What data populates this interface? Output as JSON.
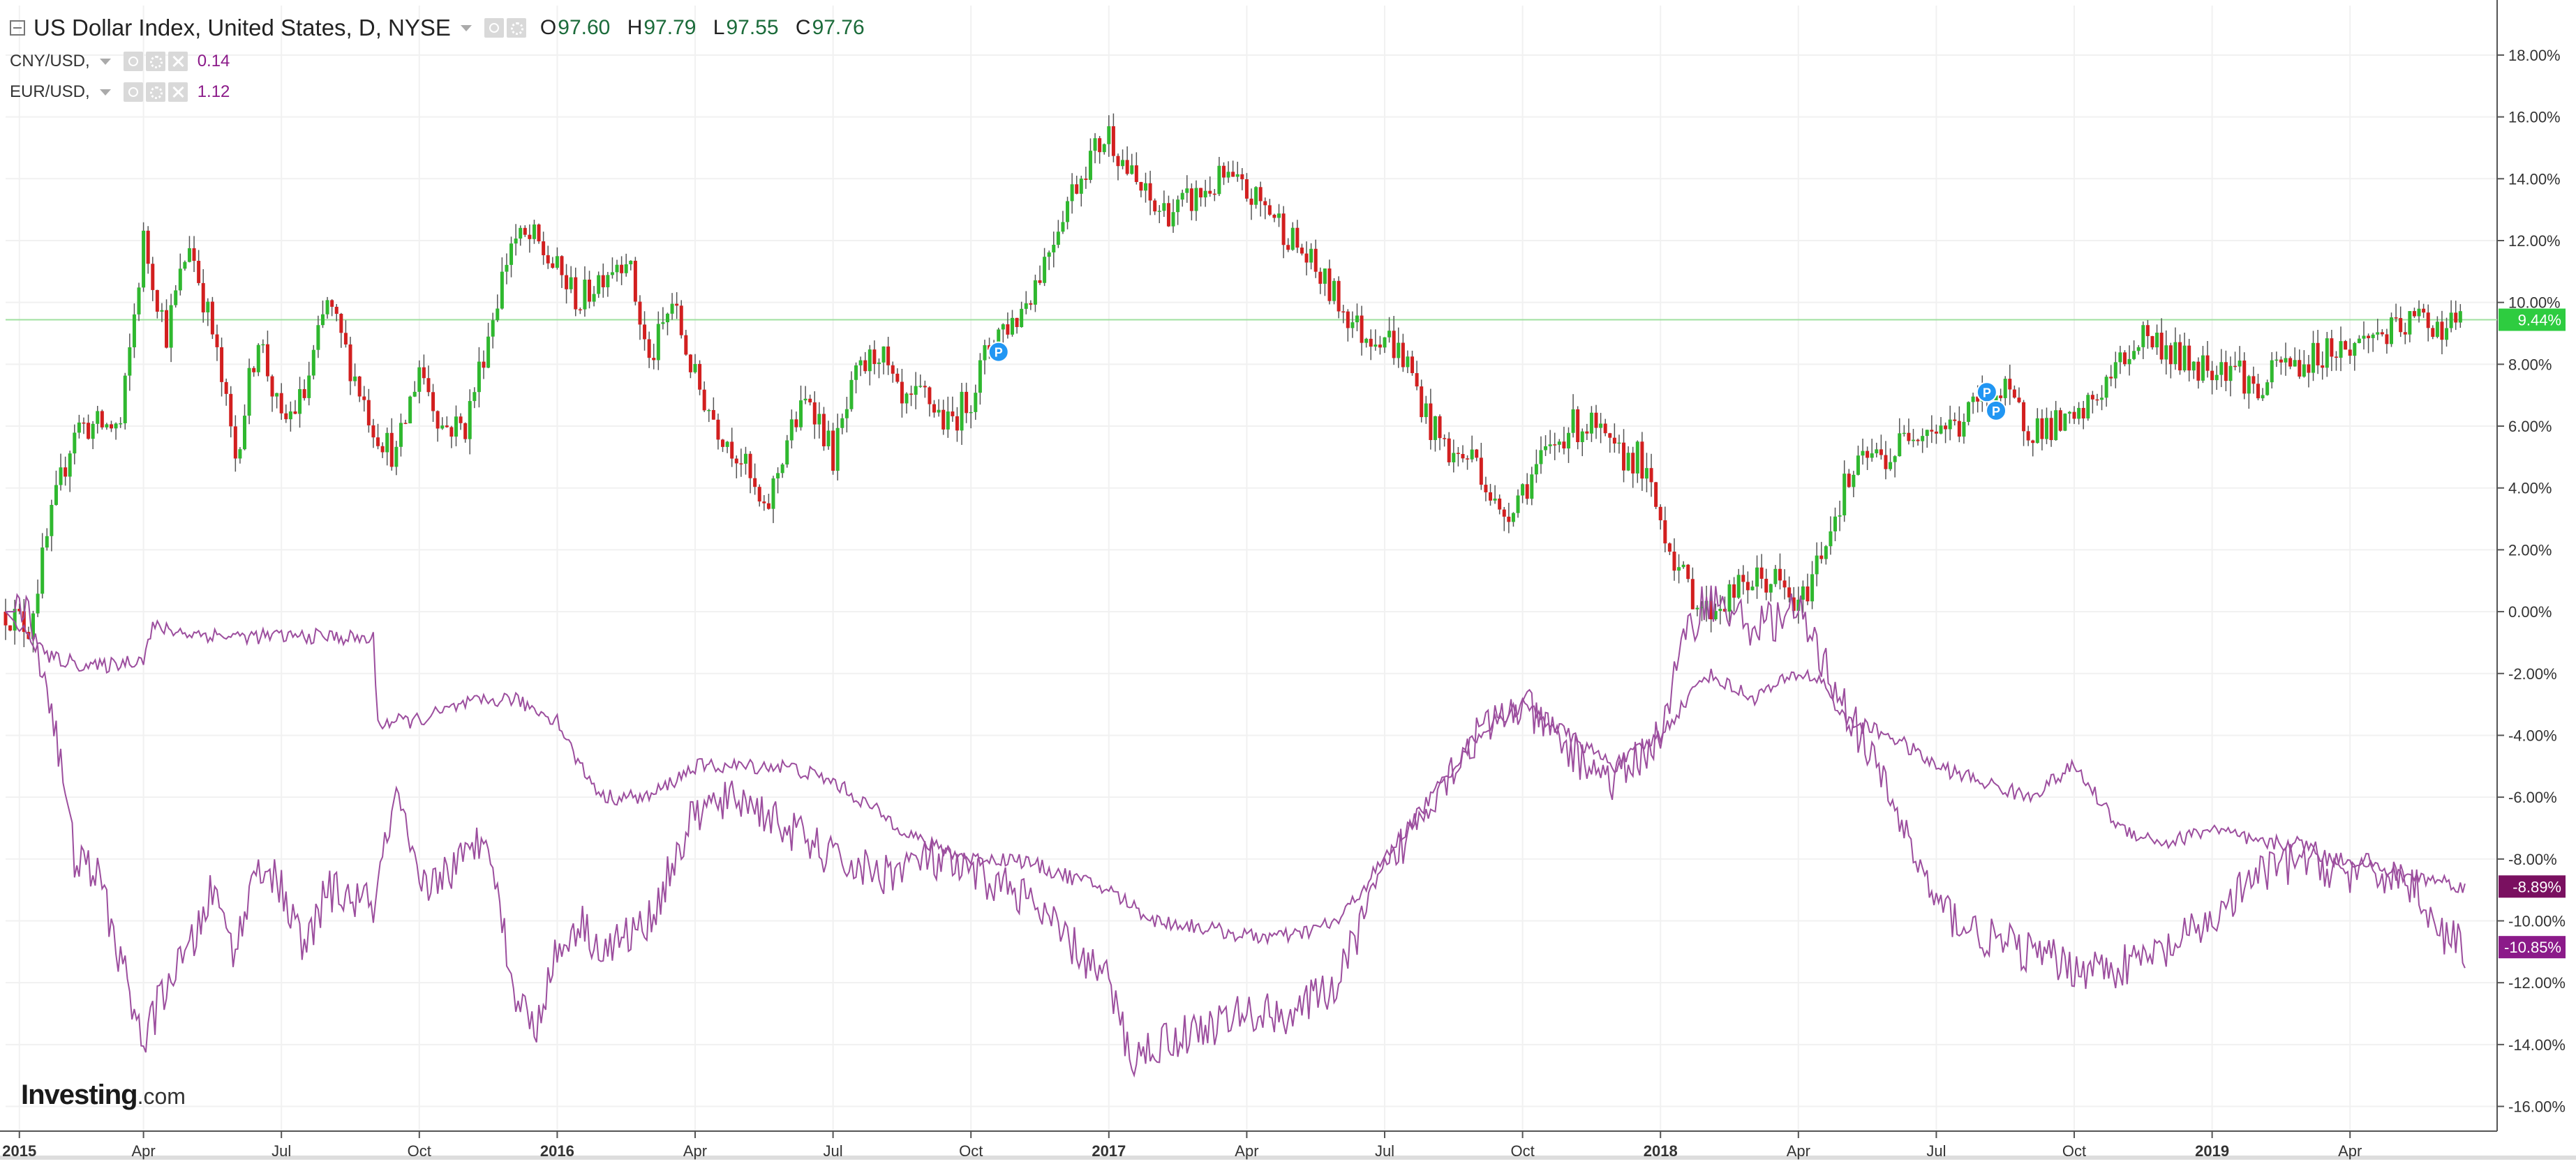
{
  "legend": {
    "main": {
      "title": "US Dollar Index, United States, D, NYSE",
      "open_label": "O",
      "open": "97.60",
      "high_label": "H",
      "high": "97.79",
      "low_label": "L",
      "low": "97.55",
      "close_label": "C",
      "close": "97.76"
    },
    "series": [
      {
        "name": "CNY/USD,",
        "value": "0.14"
      },
      {
        "name": "EUR/USD,",
        "value": "1.12"
      }
    ]
  },
  "logo": {
    "brand": "Investing",
    "suffix": ".com"
  },
  "colors": {
    "up": "#2fb82f",
    "down": "#d21f1f",
    "wick": "#555555",
    "compare": "#9c4e9e",
    "grid": "#f1f1f1",
    "price_line": "#9fe09f",
    "badge_green": "#2ecc40",
    "badge_purple": "#8b1a89",
    "badge_cny": "#7a1060",
    "p_marker": "#2196f3",
    "axis_text": "#333333"
  },
  "chart_data": {
    "type": "line",
    "title": "US Dollar Index, United States, D, NYSE",
    "y_unit": "% change from start",
    "ylim": [
      -16.8,
      19.6
    ],
    "y_ticks": [
      18,
      16,
      14,
      12,
      10,
      8,
      6,
      4,
      2,
      0,
      -2,
      -4,
      -6,
      -8,
      -10,
      -12,
      -14,
      -16
    ],
    "y_tick_labels": [
      "18.00%",
      "16.00%",
      "14.00%",
      "12.00%",
      "10.00%",
      "8.00%",
      "6.00%",
      "4.00%",
      "2.00%",
      "0.00%",
      "-2.00%",
      "-4.00%",
      "-6.00%",
      "-8.00%",
      "-10.00%",
      "-12.00%",
      "-14.00%",
      "-16.00%"
    ],
    "x_range": [
      0,
      54.2
    ],
    "x_unit": "months since Jan 2015",
    "x_ticks": [
      {
        "t": 0.3,
        "label": "2015",
        "bold": true
      },
      {
        "t": 3,
        "label": "Apr",
        "bold": false
      },
      {
        "t": 6,
        "label": "Jul",
        "bold": false
      },
      {
        "t": 9,
        "label": "Oct",
        "bold": false
      },
      {
        "t": 12,
        "label": "2016",
        "bold": true
      },
      {
        "t": 15,
        "label": "Apr",
        "bold": false
      },
      {
        "t": 18,
        "label": "Jul",
        "bold": false
      },
      {
        "t": 21,
        "label": "Oct",
        "bold": false
      },
      {
        "t": 24,
        "label": "2017",
        "bold": true
      },
      {
        "t": 27,
        "label": "Apr",
        "bold": false
      },
      {
        "t": 30,
        "label": "Jul",
        "bold": false
      },
      {
        "t": 33,
        "label": "Oct",
        "bold": false
      },
      {
        "t": 36,
        "label": "2018",
        "bold": true
      },
      {
        "t": 39,
        "label": "Apr",
        "bold": false
      },
      {
        "t": 42,
        "label": "Jul",
        "bold": false
      },
      {
        "t": 45,
        "label": "Oct",
        "bold": false
      },
      {
        "t": 48,
        "label": "2019",
        "bold": true
      },
      {
        "t": 51,
        "label": "Apr",
        "bold": false
      }
    ],
    "current_price_level": 9.44,
    "series": [
      {
        "name": "US Dollar Index",
        "style": "candlestick",
        "last_label": "9.44%",
        "points": [
          [
            0,
            0
          ],
          [
            0.5,
            -0.5
          ],
          [
            1,
            3
          ],
          [
            1.5,
            6
          ],
          [
            2,
            6
          ],
          [
            2.5,
            6
          ],
          [
            3,
            12
          ],
          [
            3.5,
            9
          ],
          [
            4,
            12
          ],
          [
            4.5,
            9
          ],
          [
            5,
            5
          ],
          [
            5.5,
            9
          ],
          [
            6,
            6
          ],
          [
            6.5,
            7
          ],
          [
            7,
            10
          ],
          [
            7.5,
            8
          ],
          [
            8,
            6
          ],
          [
            8.5,
            5
          ],
          [
            9,
            8
          ],
          [
            9.5,
            6
          ],
          [
            10,
            6
          ],
          [
            10.5,
            9
          ],
          [
            11,
            12
          ],
          [
            11.5,
            12
          ],
          [
            12,
            11
          ],
          [
            12.5,
            10
          ],
          [
            13,
            11
          ],
          [
            13.5,
            11.6
          ],
          [
            14,
            8
          ],
          [
            14.5,
            10
          ],
          [
            15,
            7.5
          ],
          [
            15.5,
            6
          ],
          [
            16,
            5
          ],
          [
            16.5,
            3
          ],
          [
            17,
            5.6
          ],
          [
            17.5,
            7
          ],
          [
            18,
            5
          ],
          [
            18.5,
            7.5
          ],
          [
            19,
            8.5
          ],
          [
            19.5,
            6.5
          ],
          [
            20,
            7
          ],
          [
            20.5,
            6
          ],
          [
            21,
            7
          ],
          [
            21.5,
            9
          ],
          [
            22,
            9.5
          ],
          [
            22.5,
            11
          ],
          [
            23,
            13
          ],
          [
            23.5,
            14.5
          ],
          [
            24,
            15.5
          ],
          [
            24.5,
            14
          ],
          [
            25,
            13
          ],
          [
            25.5,
            13
          ],
          [
            26,
            13.5
          ],
          [
            26.5,
            14
          ],
          [
            27,
            13.5
          ],
          [
            27.5,
            13
          ],
          [
            28,
            12
          ],
          [
            28.5,
            11
          ],
          [
            29,
            10
          ],
          [
            29.5,
            9
          ],
          [
            30,
            9
          ],
          [
            30.5,
            8
          ],
          [
            31,
            6
          ],
          [
            31.5,
            5
          ],
          [
            32,
            5
          ],
          [
            32.5,
            3
          ],
          [
            33,
            4
          ],
          [
            33.5,
            5
          ],
          [
            34,
            6
          ],
          [
            34.5,
            6
          ],
          [
            35,
            5
          ],
          [
            35.5,
            5
          ],
          [
            36,
            3
          ],
          [
            36.5,
            1
          ],
          [
            37,
            0
          ],
          [
            37.5,
            0.5
          ],
          [
            38,
            1
          ],
          [
            38.5,
            1
          ],
          [
            39,
            0
          ],
          [
            39.5,
            2
          ],
          [
            40,
            4
          ],
          [
            40.5,
            5
          ],
          [
            41,
            5
          ],
          [
            41.5,
            6
          ],
          [
            42,
            6
          ],
          [
            42.5,
            6
          ],
          [
            43,
            7
          ],
          [
            43.5,
            7
          ],
          [
            44,
            6
          ],
          [
            44.5,
            6
          ],
          [
            45,
            6
          ],
          [
            45.5,
            7
          ],
          [
            46,
            8
          ],
          [
            46.5,
            9
          ],
          [
            47,
            8.5
          ],
          [
            47.5,
            8
          ],
          [
            48,
            8
          ],
          [
            48.5,
            8
          ],
          [
            49,
            7
          ],
          [
            49.5,
            8
          ],
          [
            50,
            8
          ],
          [
            50.5,
            8.5
          ],
          [
            51,
            8.5
          ],
          [
            51.5,
            9
          ],
          [
            52,
            9
          ],
          [
            52.5,
            9.5
          ],
          [
            53,
            9.2
          ],
          [
            53.5,
            9.44
          ]
        ]
      },
      {
        "name": "CNY/USD",
        "style": "line",
        "last_label": "-8.89%",
        "points": [
          [
            0,
            0
          ],
          [
            0.3,
            -0.5
          ],
          [
            0.6,
            -1
          ],
          [
            1,
            -1.5
          ],
          [
            2,
            -1.8
          ],
          [
            3,
            -1.5
          ],
          [
            3.2,
            -0.5
          ],
          [
            4,
            -0.7
          ],
          [
            5,
            -0.8
          ],
          [
            6,
            -0.8
          ],
          [
            7,
            -0.8
          ],
          [
            8,
            -0.9
          ],
          [
            8.1,
            -3.6
          ],
          [
            9,
            -3.5
          ],
          [
            10,
            -3
          ],
          [
            11,
            -2.8
          ],
          [
            12,
            -3.5
          ],
          [
            12.5,
            -5
          ],
          [
            13,
            -6
          ],
          [
            14,
            -6
          ],
          [
            15,
            -5
          ],
          [
            16,
            -5
          ],
          [
            17,
            -5
          ],
          [
            18,
            -5.5
          ],
          [
            19,
            -6.5
          ],
          [
            20,
            -7.5
          ],
          [
            21,
            -8
          ],
          [
            22,
            -8
          ],
          [
            23,
            -8.5
          ],
          [
            24,
            -9
          ],
          [
            25,
            -10
          ],
          [
            26,
            -10.2
          ],
          [
            27,
            -10.5
          ],
          [
            28,
            -10.5
          ],
          [
            29,
            -10
          ],
          [
            30,
            -8
          ],
          [
            31,
            -6
          ],
          [
            32,
            -4
          ],
          [
            33,
            -3
          ],
          [
            34,
            -4
          ],
          [
            35,
            -5
          ],
          [
            36,
            -4
          ],
          [
            36.5,
            -3
          ],
          [
            37,
            -2
          ],
          [
            38,
            -2.8
          ],
          [
            39,
            -2
          ],
          [
            39.5,
            -2.2
          ],
          [
            40,
            -3.5
          ],
          [
            41,
            -4
          ],
          [
            42,
            -5
          ],
          [
            43,
            -5.5
          ],
          [
            44,
            -6
          ],
          [
            45,
            -5
          ],
          [
            45.5,
            -6
          ],
          [
            46,
            -7
          ],
          [
            47,
            -7.5
          ],
          [
            48,
            -7
          ],
          [
            49,
            -7.5
          ],
          [
            50,
            -7.5
          ],
          [
            50.5,
            -8
          ],
          [
            51,
            -8
          ],
          [
            52,
            -8.5
          ],
          [
            53,
            -8.7
          ],
          [
            53.5,
            -8.89
          ]
        ]
      },
      {
        "name": "EUR/USD",
        "style": "line",
        "last_label": "-10.85%",
        "points": [
          [
            0,
            0
          ],
          [
            0.5,
            0
          ],
          [
            1,
            -3
          ],
          [
            1.5,
            -8
          ],
          [
            2,
            -8.5
          ],
          [
            3,
            -14
          ],
          [
            3.5,
            -12
          ],
          [
            4,
            -11
          ],
          [
            4.5,
            -9
          ],
          [
            5,
            -11
          ],
          [
            5.5,
            -8
          ],
          [
            6,
            -9
          ],
          [
            6.5,
            -11
          ],
          [
            7,
            -9
          ],
          [
            8,
            -9.5
          ],
          [
            8.5,
            -6
          ],
          [
            9,
            -9
          ],
          [
            10,
            -8
          ],
          [
            10.5,
            -7
          ],
          [
            11,
            -12
          ],
          [
            11.5,
            -13.5
          ],
          [
            12,
            -11
          ],
          [
            12.5,
            -10
          ],
          [
            13,
            -11
          ],
          [
            14,
            -10
          ],
          [
            15,
            -6.5
          ],
          [
            16,
            -6
          ],
          [
            17,
            -7
          ],
          [
            18,
            -8
          ],
          [
            19,
            -8.5
          ],
          [
            20,
            -8
          ],
          [
            21,
            -8.5
          ],
          [
            22,
            -9
          ],
          [
            23,
            -10.5
          ],
          [
            24,
            -12
          ],
          [
            24.5,
            -14.5
          ],
          [
            25,
            -14
          ],
          [
            26,
            -13.5
          ],
          [
            27,
            -13
          ],
          [
            28,
            -13
          ],
          [
            29,
            -12
          ],
          [
            29.5,
            -10
          ],
          [
            30,
            -8.5
          ],
          [
            31,
            -6
          ],
          [
            32,
            -4
          ],
          [
            33,
            -3
          ],
          [
            34,
            -4.5
          ],
          [
            35,
            -5.5
          ],
          [
            36,
            -4
          ],
          [
            36.5,
            -1
          ],
          [
            37,
            0.5
          ],
          [
            38,
            -0.5
          ],
          [
            39,
            0
          ],
          [
            40,
            -3
          ],
          [
            41,
            -6
          ],
          [
            42,
            -9.5
          ],
          [
            43,
            -10.5
          ],
          [
            44,
            -11
          ],
          [
            45,
            -11.5
          ],
          [
            46,
            -11.5
          ],
          [
            47,
            -11
          ],
          [
            48,
            -10
          ],
          [
            49,
            -8.5
          ],
          [
            50,
            -8
          ],
          [
            51,
            -8.5
          ],
          [
            52,
            -8.5
          ],
          [
            52.5,
            -9
          ],
          [
            53,
            -10.5
          ],
          [
            53.5,
            -10.85
          ]
        ]
      }
    ],
    "markers": [
      {
        "t": 21.6,
        "y": 8.4,
        "label": "P"
      },
      {
        "t": 43.1,
        "y": 7.1,
        "label": "P"
      },
      {
        "t": 43.3,
        "y": 6.5,
        "label": "P"
      }
    ]
  }
}
